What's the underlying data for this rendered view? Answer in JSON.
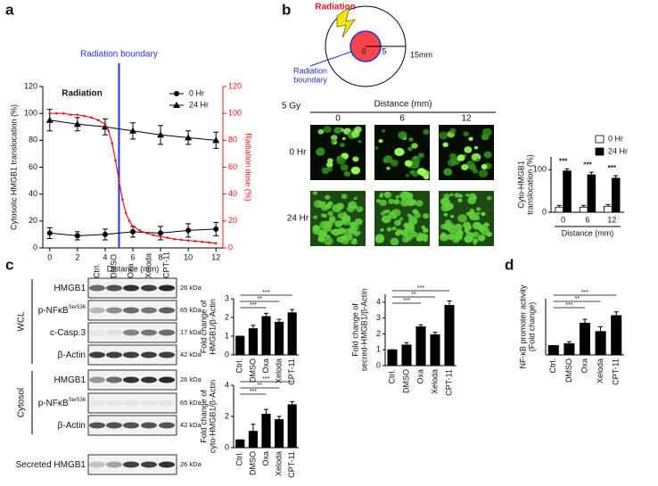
{
  "panel_labels": [
    "a",
    "b",
    "c",
    "d"
  ],
  "chart_data": [
    {
      "type": "line",
      "annotations": [
        "Radiation boundary",
        "Radiation"
      ],
      "vline": 5,
      "xlabel": "Distance (mm)",
      "ylabel": "Cytosolic HMGB1 translocation (%)",
      "y2label": "Radiation dose (%)",
      "xlim": [
        -0.5,
        12.5
      ],
      "xticks": [
        0,
        2,
        4,
        6,
        8,
        10,
        12
      ],
      "ylim": [
        0,
        120
      ],
      "yticks": [
        0,
        20,
        40,
        60,
        80,
        100,
        120
      ],
      "y2lim": [
        0,
        120
      ],
      "y2ticks": [
        0,
        20,
        40,
        60,
        80,
        100,
        120
      ],
      "legend": "upper right",
      "series": [
        {
          "name": "0 Hr",
          "color": "#000000",
          "marker": "circle",
          "x": [
            0,
            2,
            4,
            6,
            8,
            10,
            12
          ],
          "values": [
            11,
            9,
            10,
            12,
            11,
            13,
            14
          ],
          "errors": [
            4,
            3,
            4,
            4,
            5,
            5,
            5
          ]
        },
        {
          "name": "24 Hr",
          "color": "#000000",
          "marker": "triangle",
          "x": [
            0,
            2,
            4,
            6,
            8,
            10,
            12
          ],
          "values": [
            95,
            92,
            90,
            87,
            84,
            82,
            80
          ],
          "errors": [
            8,
            5,
            6,
            6,
            7,
            5,
            6
          ]
        },
        {
          "color": "#e8141c",
          "marker": "dot",
          "axis": "y2",
          "x": [
            0,
            0.5,
            1,
            1.5,
            2,
            2.5,
            3,
            3.5,
            4,
            4.25,
            4.5,
            4.75,
            5,
            5.25,
            5.5,
            5.75,
            6,
            6.5,
            7,
            7.5,
            8,
            8.5,
            9,
            9.5,
            10,
            10.5,
            11,
            11.5,
            12
          ],
          "values": [
            100,
            100,
            100,
            99,
            99,
            98,
            97,
            95,
            92,
            87,
            78,
            65,
            50,
            36,
            26,
            20,
            16,
            13,
            11,
            9.5,
            8.5,
            7.5,
            6.5,
            6,
            5.5,
            5,
            4.5,
            4,
            3.5
          ]
        }
      ]
    },
    {
      "type": "bar",
      "categories": [
        "0",
        "6",
        "12"
      ],
      "xlabel": "Distance (mm)",
      "ylabel": [
        "Cyto-HMGB1",
        "translocation (%)"
      ],
      "ylim": [
        0,
        130
      ],
      "yticks": [
        0,
        100
      ],
      "legend": "upper right",
      "annotations": [
        "***",
        "***",
        "***"
      ],
      "series": [
        {
          "name": "0 Hr",
          "color": "#ffffff",
          "values": [
            12,
            12,
            14
          ],
          "errors": [
            4,
            4,
            4
          ]
        },
        {
          "name": "24 Hr",
          "color": "#000000",
          "values": [
            97,
            88,
            80
          ],
          "errors": [
            5,
            6,
            6
          ]
        }
      ]
    },
    {
      "type": "bar",
      "categories": [
        "Ctrl.",
        "DMSO",
        "Oxa",
        "Xeloda",
        "CPT-11"
      ],
      "ylabel": [
        "Fold change of",
        "HMGB1/β-Actin"
      ],
      "ylim": [
        0,
        3
      ],
      "yticks": [
        0,
        1,
        2,
        3
      ],
      "brackets": [
        {
          "from": "Ctrl.",
          "to": "CPT-11",
          "label": "***"
        },
        {
          "from": "Ctrl.",
          "to": "Xeloda",
          "label": "**"
        },
        {
          "from": "Ctrl.",
          "to": "Oxa",
          "label": "***"
        }
      ],
      "series": [
        {
          "color": "#000000",
          "values": [
            1,
            1.4,
            2.05,
            1.75,
            2.25
          ],
          "errors": [
            0,
            0.18,
            0.17,
            0.15,
            0.17
          ]
        }
      ]
    },
    {
      "type": "bar",
      "categories": [
        "Ctrl.",
        "DMSO",
        "Oxa",
        "Xeloda",
        "CPT-11"
      ],
      "ylabel": [
        "Fold change of",
        "secred-HMGB1/β-Actin"
      ],
      "ylim": [
        0,
        4.5
      ],
      "yticks": [
        0,
        1,
        2,
        3,
        4
      ],
      "brackets": [
        {
          "from": "Ctrl.",
          "to": "CPT-11",
          "label": "***"
        },
        {
          "from": "Ctrl.",
          "to": "Xeloda",
          "label": "**"
        },
        {
          "from": "Ctrl.",
          "to": "Oxa",
          "label": "***"
        }
      ],
      "series": [
        {
          "color": "#000000",
          "values": [
            1,
            1.3,
            2.45,
            1.95,
            3.8
          ],
          "errors": [
            0,
            0.15,
            0.12,
            0.15,
            0.28
          ]
        }
      ]
    },
    {
      "type": "bar",
      "categories": [
        "Ctrl.",
        "DMSO",
        "Oxa",
        "Xeloda",
        "CPT-11"
      ],
      "ylabel": [
        "Fold change of",
        "cyto-HMGB1/β-Actin"
      ],
      "ylim": [
        0,
        4
      ],
      "yticks": [
        0,
        2,
        4
      ],
      "brackets": [
        {
          "from": "Ctrl.",
          "to": "CPT-11",
          "label": "***"
        },
        {
          "from": "Ctrl.",
          "to": "Xeloda",
          "label": "**"
        },
        {
          "from": "Ctrl.",
          "to": "Oxa",
          "label": "***"
        }
      ],
      "series": [
        {
          "color": "#000000",
          "values": [
            0.5,
            1.05,
            2.15,
            1.8,
            2.75
          ],
          "errors": [
            0,
            0.45,
            0.3,
            0.2,
            0.2
          ]
        }
      ]
    },
    {
      "type": "bar",
      "categories": [
        "Ctrl.",
        "DMSO",
        "Oxa",
        "Xeloda",
        "CPT-11"
      ],
      "ylabel": [
        "NF-κB promoter activity",
        "(Fold change)"
      ],
      "ylim": [
        0,
        3
      ],
      "brackets": [
        {
          "from": "Ctrl.",
          "to": "CPT-11",
          "label": "***"
        },
        {
          "from": "Ctrl.",
          "to": "Xeloda",
          "label": "**"
        },
        {
          "from": "Ctrl.",
          "to": "Oxa",
          "label": "***"
        }
      ],
      "series": [
        {
          "color": "#000000",
          "values": [
            0.5,
            0.6,
            1.7,
            1.25,
            2.1
          ],
          "errors": [
            0,
            0.1,
            0.2,
            0.25,
            0.2
          ]
        }
      ]
    }
  ],
  "diagram": {
    "radiation": "Radiation",
    "boundary_label": [
      "Radiation",
      "boundary"
    ],
    "center": "0",
    "inner": "5",
    "outer": "15mm"
  },
  "microscopy": {
    "dose": "5 Gy",
    "header": "Distance (mm)",
    "columns": [
      "0",
      "6",
      "12"
    ],
    "rows": [
      "0 Hr",
      "24 Hr"
    ]
  },
  "blots": {
    "lanes": [
      "Ctrl.",
      "DMSO",
      "Oxa",
      "Xeloda",
      "CPT-11"
    ],
    "groups": [
      {
        "name": "WCL",
        "rows": [
          {
            "label": "HMGB1",
            "kda": "26 kDa"
          },
          {
            "label": "p-NFκB",
            "sup": "Ser536",
            "kda": "65 kDa"
          },
          {
            "label": "c-Casp.3",
            "kda": "17 kDa"
          },
          {
            "label": "β-Actin",
            "kda": "42 kDa"
          }
        ]
      },
      {
        "name": "Cytosol",
        "rows": [
          {
            "label": "HMGB1",
            "kda": "26 kDa"
          },
          {
            "label": "p-NFκB",
            "sup": "Ser536",
            "kda": "65 kDa"
          },
          {
            "label": "β-Actin",
            "kda": "42 kDa"
          }
        ]
      }
    ],
    "secreted": {
      "label": "Secreted HMGB1",
      "kda": "26 kDa"
    }
  }
}
